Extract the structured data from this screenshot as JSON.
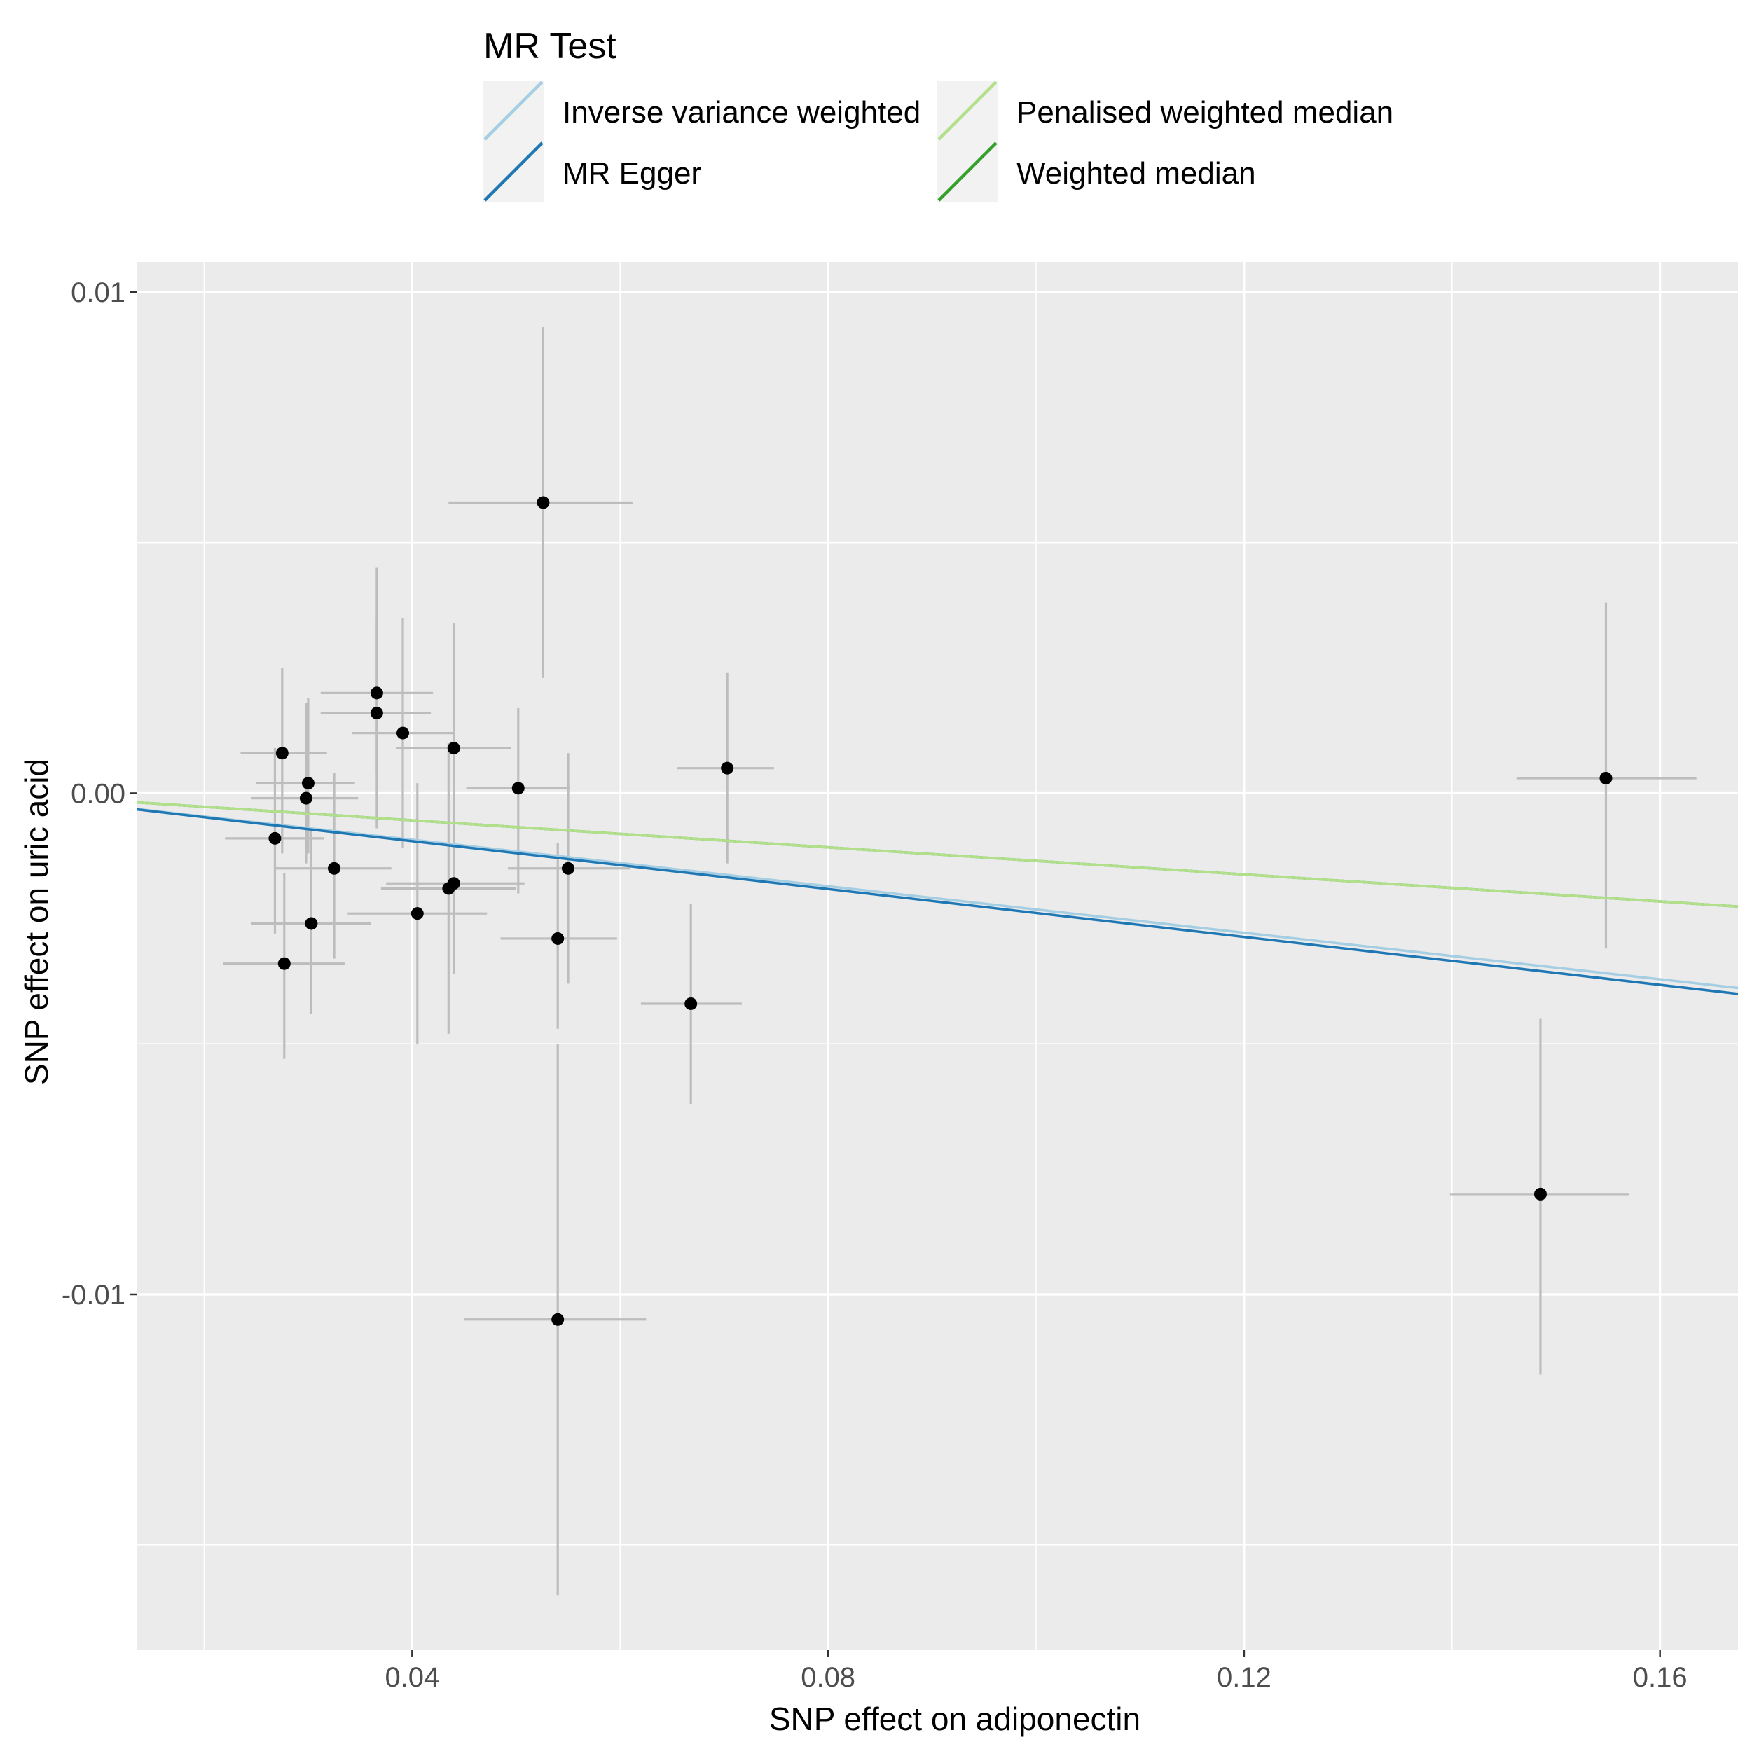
{
  "chart_data": {
    "type": "scatter",
    "title": "",
    "xlabel": "SNP effect on adiponectin",
    "ylabel": "SNP effect on uric acid",
    "xlim": [
      0.0135,
      0.1675
    ],
    "ylim": [
      -0.0171,
      0.0106
    ],
    "x_ticks": [
      0.04,
      0.08,
      0.12,
      0.16
    ],
    "x_tick_labels": [
      "0.04",
      "0.08",
      "0.12",
      "0.16"
    ],
    "x_minor_ticks": [
      0.02,
      0.06,
      0.1,
      0.14
    ],
    "y_ticks": [
      0.01,
      0.0,
      -0.01
    ],
    "y_tick_labels": [
      "0.01",
      "0.00",
      "-0.01"
    ],
    "y_minor_ticks": [
      0.005,
      -0.005,
      -0.015
    ],
    "grid": true,
    "legend": {
      "title": "MR Test",
      "position": "top",
      "entries": [
        {
          "label": "Inverse variance weighted",
          "color": "#a6cee3"
        },
        {
          "label": "MR Egger",
          "color": "#1f78b4"
        },
        {
          "label": "Penalised weighted median",
          "color": "#b2df8a"
        },
        {
          "label": "Weighted median",
          "color": "#33a02c"
        }
      ]
    },
    "regression_lines": [
      {
        "name": "Inverse variance weighted",
        "color": "#a6cee3",
        "intercept": 0.0,
        "slope": -0.0232
      },
      {
        "name": "MR Egger",
        "color": "#1f78b4",
        "intercept": 0.0,
        "slope": -0.0239
      },
      {
        "name": "Penalised weighted median",
        "color": "#b2df8a",
        "intercept": 0.0,
        "slope": -0.0135
      },
      {
        "name": "Weighted median",
        "color": "#33a02c",
        "intercept": 0.0,
        "slope": -0.0135
      }
    ],
    "points": [
      {
        "x": 0.0526,
        "y": 0.0058,
        "xlo": 0.0435,
        "xhi": 0.0612,
        "ylo": 0.0023,
        "yhi": 0.0093
      },
      {
        "x": 0.0366,
        "y": 0.002,
        "xlo": 0.0312,
        "xhi": 0.042,
        "ylo": 0.0004,
        "yhi": 0.0045
      },
      {
        "x": 0.0366,
        "y": 0.0016,
        "xlo": 0.0312,
        "xhi": 0.0418,
        "ylo": -0.0007,
        "yhi": 0.0035
      },
      {
        "x": 0.0391,
        "y": 0.0012,
        "xlo": 0.0342,
        "xhi": 0.044,
        "ylo": -0.0011,
        "yhi": 0.0035
      },
      {
        "x": 0.044,
        "y": 0.0009,
        "xlo": 0.0385,
        "xhi": 0.0495,
        "ylo": -0.0012,
        "yhi": 0.0034
      },
      {
        "x": 0.0275,
        "y": 0.0008,
        "xlo": 0.0235,
        "xhi": 0.0318,
        "ylo": -0.0012,
        "yhi": 0.0025
      },
      {
        "x": 0.03,
        "y": 0.0002,
        "xlo": 0.025,
        "xhi": 0.0345,
        "ylo": -0.0012,
        "yhi": 0.0019
      },
      {
        "x": 0.0298,
        "y": -0.0001,
        "xlo": 0.0245,
        "xhi": 0.0348,
        "ylo": -0.0014,
        "yhi": 0.0018
      },
      {
        "x": 0.0502,
        "y": 0.0001,
        "xlo": 0.0452,
        "xhi": 0.0552,
        "ylo": -0.002,
        "yhi": 0.0017
      },
      {
        "x": 0.0703,
        "y": 0.0005,
        "xlo": 0.0655,
        "xhi": 0.0748,
        "ylo": -0.0014,
        "yhi": 0.0024
      },
      {
        "x": 0.1548,
        "y": 0.0003,
        "xlo": 0.1462,
        "xhi": 0.1635,
        "ylo": -0.0031,
        "yhi": 0.0038
      },
      {
        "x": 0.0268,
        "y": -0.0009,
        "xlo": 0.022,
        "xhi": 0.0315,
        "ylo": -0.0028,
        "yhi": 0.0009
      },
      {
        "x": 0.0325,
        "y": -0.0015,
        "xlo": 0.0268,
        "xhi": 0.038,
        "ylo": -0.0033,
        "yhi": 0.0004
      },
      {
        "x": 0.055,
        "y": -0.0015,
        "xlo": 0.0492,
        "xhi": 0.061,
        "ylo": -0.0038,
        "yhi": 0.0008
      },
      {
        "x": 0.044,
        "y": -0.0018,
        "xlo": 0.0375,
        "xhi": 0.0508,
        "ylo": -0.0036,
        "yhi": 0.0
      },
      {
        "x": 0.0435,
        "y": -0.0019,
        "xlo": 0.037,
        "xhi": 0.05,
        "ylo": -0.0048,
        "yhi": 0.001
      },
      {
        "x": 0.0405,
        "y": -0.0024,
        "xlo": 0.0338,
        "xhi": 0.0472,
        "ylo": -0.005,
        "yhi": 0.0002
      },
      {
        "x": 0.0303,
        "y": -0.0026,
        "xlo": 0.0245,
        "xhi": 0.036,
        "ylo": -0.0044,
        "yhi": -0.0007
      },
      {
        "x": 0.054,
        "y": -0.0029,
        "xlo": 0.0485,
        "xhi": 0.0597,
        "ylo": -0.0047,
        "yhi": -0.001
      },
      {
        "x": 0.0277,
        "y": -0.0034,
        "xlo": 0.0218,
        "xhi": 0.0335,
        "ylo": -0.0053,
        "yhi": -0.0016
      },
      {
        "x": 0.0668,
        "y": -0.0042,
        "xlo": 0.062,
        "xhi": 0.0717,
        "ylo": -0.0062,
        "yhi": -0.0022
      },
      {
        "x": 0.1485,
        "y": -0.008,
        "xlo": 0.1398,
        "xhi": 0.157,
        "ylo": -0.0116,
        "yhi": -0.0045
      },
      {
        "x": 0.054,
        "y": -0.0105,
        "xlo": 0.045,
        "xhi": 0.0625,
        "ylo": -0.016,
        "yhi": -0.005
      }
    ]
  }
}
